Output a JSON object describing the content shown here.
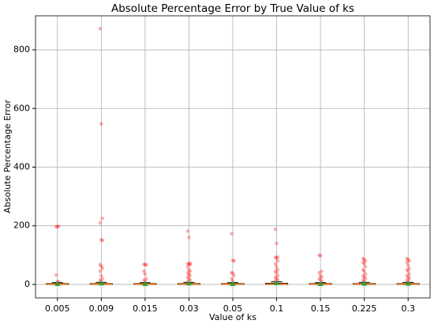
{
  "chart_data": {
    "type": "box",
    "title": "Absolute Percentage Error by True Value of ks",
    "xlabel": "Value of ks",
    "ylabel": "Absolute Percentage Error",
    "categories": [
      "0.005",
      "0.009",
      "0.015",
      "0.03",
      "0.05",
      "0.1",
      "0.15",
      "0.225",
      "0.3"
    ],
    "whislo": [
      0,
      0,
      0,
      0,
      0,
      0,
      0,
      0,
      0
    ],
    "q1": [
      0,
      0,
      0,
      0,
      0,
      0,
      0,
      0,
      0
    ],
    "medians": [
      1,
      1,
      1,
      1,
      1,
      1,
      1,
      1,
      1
    ],
    "q3": [
      3,
      3,
      3,
      3,
      3,
      4,
      3,
      3,
      3
    ],
    "whishi": [
      6,
      7,
      6,
      7,
      6,
      9,
      6,
      7,
      7
    ],
    "means": [
      3,
      5,
      3,
      5,
      3,
      6,
      3,
      4,
      4
    ],
    "outliers": [
      [
        197,
        197,
        198,
        32,
        10,
        8
      ],
      [
        872,
        548,
        225,
        210,
        152,
        150,
        68,
        62,
        55,
        45,
        30,
        20,
        15,
        10
      ],
      [
        68,
        68,
        67,
        45,
        35,
        20,
        15,
        10
      ],
      [
        182,
        160,
        72,
        71,
        70,
        68,
        60,
        50,
        45,
        40,
        35,
        30,
        25,
        20,
        15,
        10
      ],
      [
        173,
        82,
        80,
        40,
        38,
        30,
        20,
        12
      ],
      [
        188,
        140,
        93,
        92,
        90,
        80,
        70,
        60,
        50,
        45,
        40,
        30,
        25,
        20,
        15,
        12
      ],
      [
        100,
        98,
        45,
        40,
        30,
        25,
        20,
        15,
        10
      ],
      [
        88,
        85,
        80,
        75,
        70,
        60,
        50,
        45,
        35,
        30,
        25,
        20,
        15,
        10
      ],
      [
        88,
        85,
        80,
        75,
        65,
        55,
        50,
        45,
        35,
        30,
        25,
        20,
        15,
        10
      ]
    ],
    "box_color": "#000000",
    "median_color": "#ff7f0e",
    "mean_color": "#2ca02c",
    "outlier_color": "#ff0000",
    "ylim": [
      -46,
      916
    ],
    "yticks": [
      0,
      200,
      400,
      600,
      800
    ],
    "grid": true
  }
}
